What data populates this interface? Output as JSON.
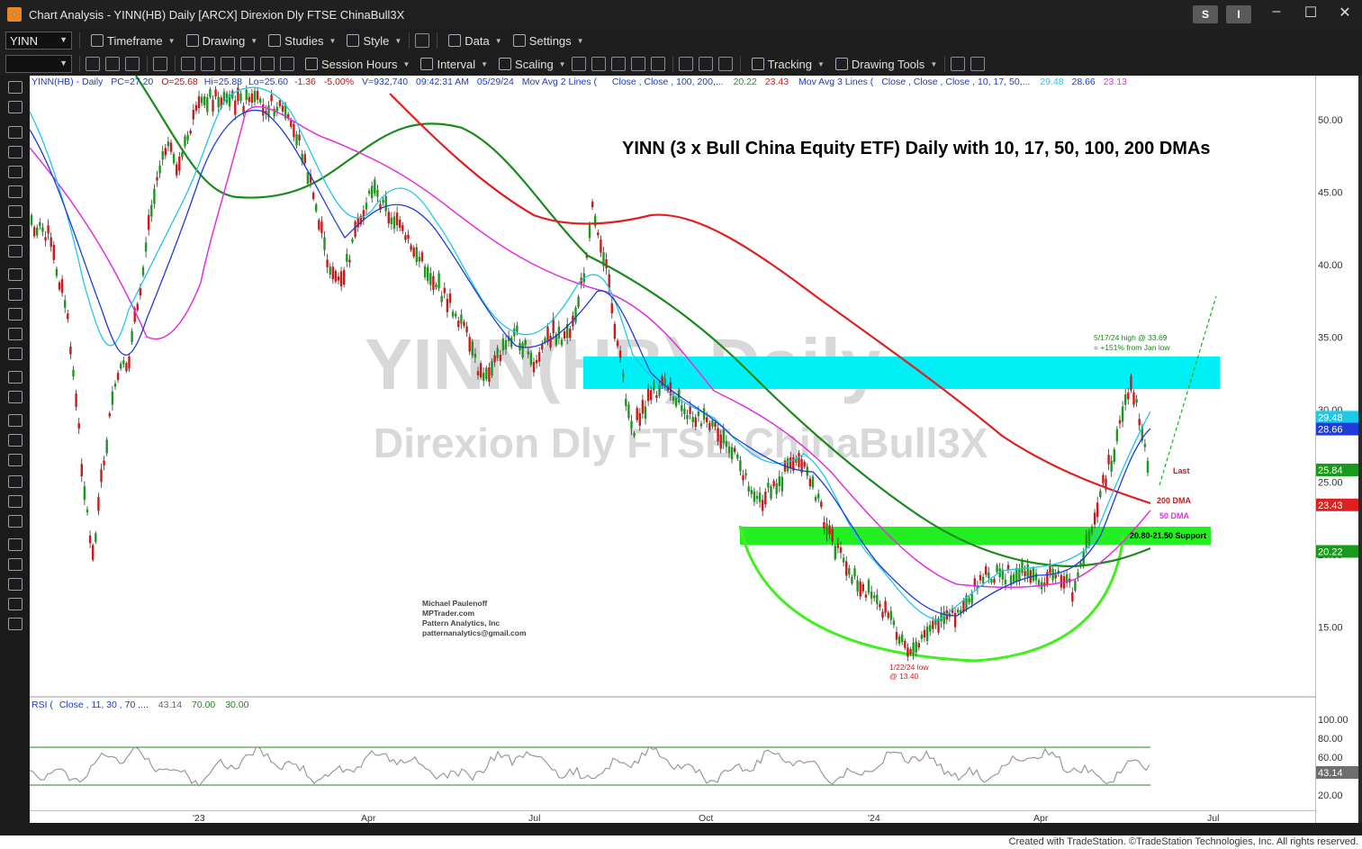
{
  "window": {
    "title": "Chart Analysis - YINN(HB) Daily [ARCX] Direxion Dly FTSE ChinaBull3X",
    "btn_s": "S",
    "btn_i": "I"
  },
  "toolbar1": {
    "symbol": "YINN",
    "timeframe": "Timeframe",
    "drawing": "Drawing",
    "studies": "Studies",
    "style": "Style",
    "data": "Data",
    "settings": "Settings"
  },
  "toolbar2": {
    "session_hours": "Session Hours",
    "interval": "Interval",
    "scaling": "Scaling",
    "tracking": "Tracking",
    "drawing_tools": "Drawing Tools"
  },
  "price_header": {
    "symbol": "YINN(HB) - Daily",
    "pc": "PC=27.20",
    "o": "O=25.68",
    "hi": "Hi=25.88",
    "lo": "Lo=25.60",
    "chg": "-1.36",
    "pct": "-5.00%",
    "vol": "V=932,740",
    "time": "09:42:31 AM",
    "date": "05/29/24",
    "ma2": "Mov Avg 2 Lines (",
    "ma2_params": "Close ,      Close ,  100,  200,...",
    "ma2_v1": "20.22",
    "ma2_v2": "23.43",
    "ma3": "Mov Avg 3 Lines (",
    "ma3_params": "Close ,  Close ,  Close , 10, 17, 50,...",
    "ma3_v1": "29.48",
    "ma3_v2": "28.66",
    "ma3_v3": "23.13"
  },
  "rsi_header": {
    "label": "RSI (",
    "params": "Close , 11,  30 ,  70 ,...",
    "v": "43.14",
    "ob": "70.00",
    "os": "30.00"
  },
  "annotations": {
    "title": "YINN (3 x Bull China Equity ETF) Daily with 10, 17, 50, 100, 200 DMAs",
    "watermark1": "YINN(HB) Daily",
    "watermark2": "Direxion Dly FTSE ChinaBull3X",
    "high_note1": "5/17/24 high @ 33.69",
    "high_note2": "= +151% from Jan low",
    "low_note1": "1/22/24 low",
    "low_note2": "@ 13.40",
    "last": "Last",
    "dma200": "200 DMA",
    "dma50": "50 DMA",
    "support": "20.80-21.50 Support",
    "author1": "Michael Paulenoff",
    "author2": "MPTrader.com",
    "author3": "Pattern Analytics, Inc",
    "author4": "patternanalytics@gmail.com"
  },
  "price_axis": {
    "ticks": [
      "50.00",
      "45.00",
      "40.00",
      "35.00",
      "30.00",
      "25.00",
      "20.00",
      "15.00"
    ],
    "tick_values": [
      50,
      45,
      40,
      35,
      30,
      25,
      20,
      15
    ],
    "badges": [
      {
        "label": "29.48",
        "value": 29.48,
        "color": "#1ec8e8"
      },
      {
        "label": "28.66",
        "value": 28.66,
        "color": "#1e3cd8"
      },
      {
        "label": "25.84",
        "value": 25.84,
        "color": "#1a9a1a"
      },
      {
        "label": "23.43",
        "value": 23.43,
        "color": "#e02020"
      },
      {
        "label": "20.22",
        "value": 20.22,
        "color": "#1a9a1a"
      }
    ]
  },
  "rsi_axis": {
    "ticks": [
      "100.00",
      "80.00",
      "60.00",
      "20.00"
    ],
    "tick_values": [
      100,
      80,
      60,
      20
    ],
    "badge": "43.14"
  },
  "time_axis": {
    "labels": [
      "'23",
      "Apr",
      "Jul",
      "Oct",
      "'24",
      "Apr",
      "Jul"
    ]
  },
  "footer": "Created with TradeStation. ©TradeStation Technologies, Inc. All rights reserved.",
  "colors": {
    "up": "#1a9a1a",
    "down": "#d01818",
    "ma10": "#1ec8e8",
    "ma17": "#1e3cd8",
    "ma50": "#e030e0",
    "ma100": "#1a8a1a",
    "ma200": "#e02020",
    "zone_resist": "#00f0f8",
    "zone_support": "#22ee22"
  }
}
